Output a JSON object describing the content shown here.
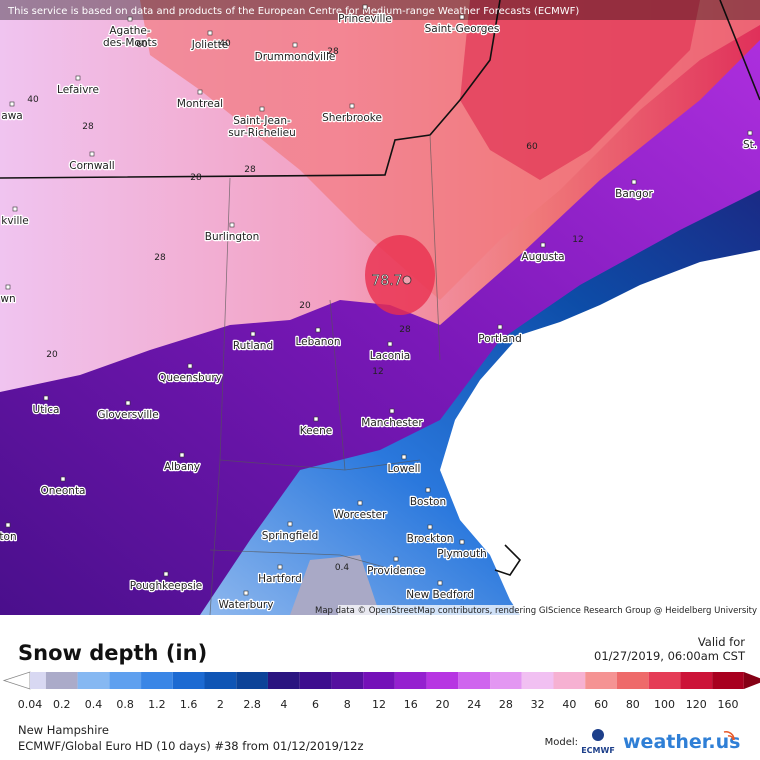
{
  "banner": "This service is based on data and products of the European Centre for Medium-range Weather Forecasts (ECMWF)",
  "attribution": "Map data © OpenStreetMap contributors, rendering GIScience Research Group @ Heidelberg University",
  "max_label": "78.7",
  "cities": [
    {
      "name": "Princeville"
    },
    {
      "name": "Saint-Georges"
    },
    {
      "lines": [
        "Agathe-",
        "des-Monts"
      ]
    },
    {
      "name": "Joliette"
    },
    {
      "name": "Drummondville"
    },
    {
      "name": "Lefaivre"
    },
    {
      "name": "awa"
    },
    {
      "name": "Montreal"
    },
    {
      "lines": [
        "Saint-Jean-",
        "sur-Richelieu"
      ]
    },
    {
      "name": "Sherbrooke"
    },
    {
      "name": "Cornwall"
    },
    {
      "name": "Bangor"
    },
    {
      "name": "St."
    },
    {
      "name": "kville"
    },
    {
      "name": "Burlington"
    },
    {
      "name": "Augusta"
    },
    {
      "name": "wn"
    },
    {
      "name": "Rutland"
    },
    {
      "name": "Lebanon"
    },
    {
      "name": "Portland"
    },
    {
      "name": "Laconia"
    },
    {
      "name": "Queensbury"
    },
    {
      "name": "Utica"
    },
    {
      "name": "Gloversville"
    },
    {
      "name": "Manchester"
    },
    {
      "name": "Keene"
    },
    {
      "name": "Albany"
    },
    {
      "name": "Lowell"
    },
    {
      "name": "Oneonta"
    },
    {
      "name": "Boston"
    },
    {
      "name": "Worcester"
    },
    {
      "name": "ton"
    },
    {
      "name": "Brockton"
    },
    {
      "name": "Springfield"
    },
    {
      "name": "Plymouth"
    },
    {
      "name": "Providence"
    },
    {
      "name": "Hartford"
    },
    {
      "name": "Poughkeepsie"
    },
    {
      "name": "New Bedford"
    },
    {
      "name": "Waterbury"
    }
  ],
  "contour_labels": [
    "40",
    "28",
    "28",
    "28",
    "28",
    "28",
    "20",
    "20",
    "12",
    "12",
    "60",
    "40",
    "60",
    "28",
    "0.4"
  ],
  "legend": {
    "title": "Snow depth (in)",
    "valid_label": "Valid for",
    "valid_time": "01/27/2019, 06:00am CST",
    "ticks": [
      0.04,
      0.2,
      0.4,
      0.8,
      1.2,
      1.6,
      2,
      2.8,
      4,
      6,
      8,
      12,
      16,
      20,
      24,
      28,
      32,
      40,
      60,
      80,
      100,
      120,
      160
    ],
    "colors": [
      "#d8d8f2",
      "#ababc9",
      "#86b8f2",
      "#5fa0ef",
      "#3a86e6",
      "#1c6ad2",
      "#0f55b5",
      "#0c4398",
      "#2a1580",
      "#3e0d8e",
      "#55109f",
      "#7410b8",
      "#9520cf",
      "#b735e2",
      "#cf65ee",
      "#e397f2",
      "#f1c0f2",
      "#f6b1d2",
      "#f59393",
      "#ee6a6a",
      "#e53c56",
      "#cc1338",
      "#a8001f",
      "#850015"
    ]
  },
  "footer": {
    "region": "New Hampshire",
    "run": "ECMWF/Global Euro HD (10 days) #38 from 01/12/2019/12z",
    "model_label": "Model:",
    "model": "ECMWF",
    "brand": "weather.us"
  }
}
